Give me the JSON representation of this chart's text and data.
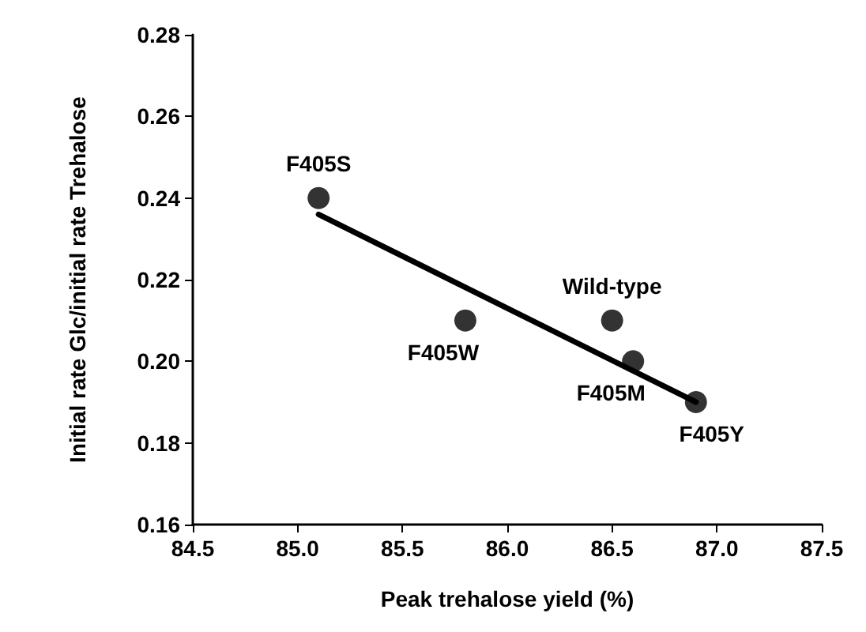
{
  "chart_data": {
    "type": "scatter",
    "xlabel": "Peak trehalose yield (%)",
    "ylabel": "Initial rate Glc/initial rate Trehalose",
    "xlim": [
      84.5,
      87.5
    ],
    "xticks": [
      84.5,
      {
        "value": 85,
        "label": "85.0"
      },
      85.5,
      {
        "value": 86,
        "label": "86.0"
      },
      86.5,
      {
        "value": 87,
        "label": "87.0"
      },
      87.5
    ],
    "ylim": [
      0.16,
      0.28
    ],
    "yticks": [
      0.16,
      0.18,
      {
        "value": 0.2,
        "label": "0.20"
      },
      0.22,
      0.24,
      0.26,
      0.28
    ],
    "grid": false,
    "series": [
      {
        "color": "#000000",
        "marker": "circle",
        "x": [
          85.1,
          85.8,
          86.5,
          86.6,
          86.9
        ],
        "values": [
          0.24,
          0.21,
          0.21,
          0.2,
          0.19
        ]
      },
      {
        "type": "line",
        "color": "#000000",
        "line_style": "solid",
        "marker": "none",
        "x": [
          85.1,
          86.9
        ],
        "values": [
          0.236,
          0.19
        ]
      }
    ],
    "annotations": [
      {
        "text": "F405S",
        "x": 85.1,
        "y": 0.24
      },
      {
        "text": "F405W",
        "x": 85.8,
        "y": 0.21
      },
      {
        "text": "Wild-type",
        "x": 86.5,
        "y": 0.21
      },
      {
        "text": "F405M",
        "x": 86.6,
        "y": 0.2
      },
      {
        "text": "F405Y",
        "x": 86.9,
        "y": 0.19
      }
    ]
  }
}
